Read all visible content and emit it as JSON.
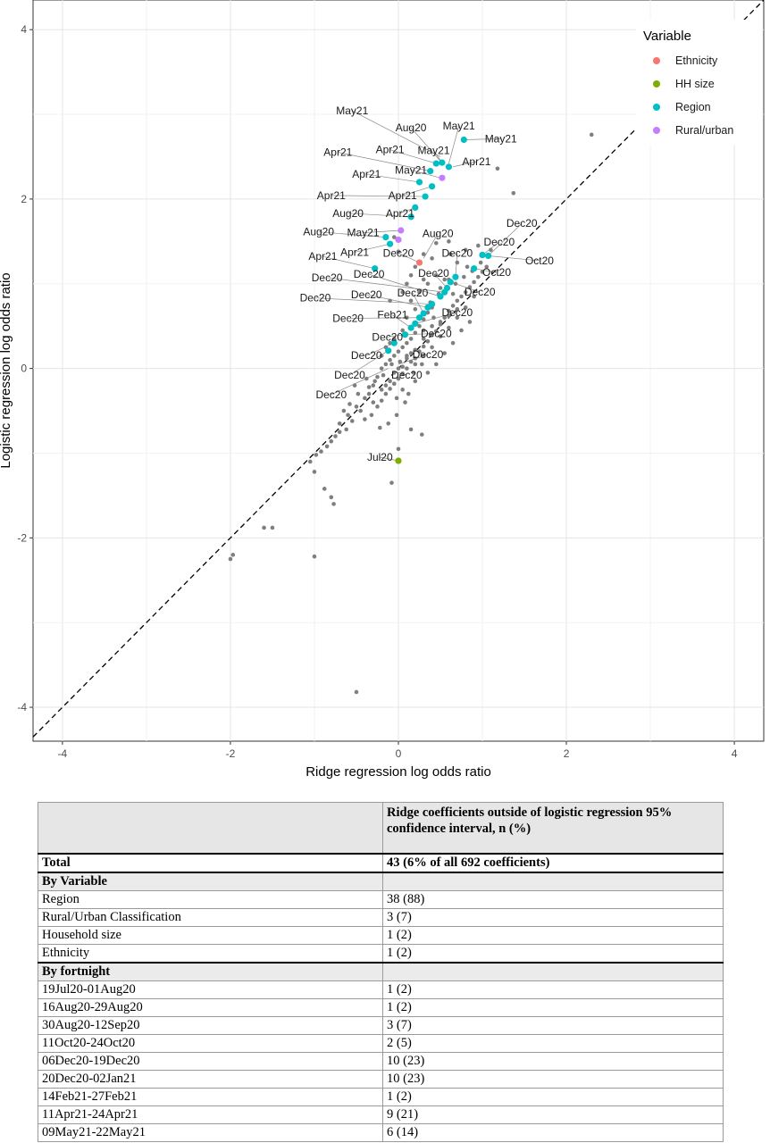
{
  "chart_data": {
    "type": "scatter",
    "xlabel": "Ridge regression log odds ratio",
    "ylabel": "Logistic regression log odds ratio",
    "xlim": [
      -4.35,
      4.35
    ],
    "ylim": [
      -4.4,
      4.35
    ],
    "x_ticks": [
      -4,
      -2,
      0,
      2,
      4
    ],
    "y_ticks": [
      -4,
      -2,
      0,
      2,
      4
    ],
    "reference_line": "y = x (dashed)",
    "grid": true,
    "legend": {
      "title": "Variable",
      "position": "top-right",
      "entries": [
        {
          "name": "Ethnicity",
          "color": "#F8766D"
        },
        {
          "name": "HH size",
          "color": "#7CAE00"
        },
        {
          "name": "Region",
          "color": "#00BFC4"
        },
        {
          "name": "Rural/urban",
          "color": "#C77CFF"
        }
      ]
    },
    "background_color": "#7f7f7f",
    "background_points": [
      [
        -2.0,
        -2.25
      ],
      [
        -1.97,
        -2.2
      ],
      [
        -1.6,
        -1.88
      ],
      [
        -1.5,
        -1.88
      ],
      [
        -1.0,
        -2.22
      ],
      [
        -0.5,
        -3.82
      ],
      [
        2.3,
        2.76
      ],
      [
        1.37,
        2.07
      ],
      [
        1.18,
        2.36
      ],
      [
        0.28,
        -0.78
      ],
      [
        0.15,
        -0.72
      ],
      [
        0.0,
        -0.95
      ],
      [
        -0.08,
        -1.35
      ],
      [
        0.0,
        -1.08
      ],
      [
        -0.8,
        -1.52
      ],
      [
        -0.77,
        -1.6
      ],
      [
        -0.88,
        -1.42
      ],
      [
        -1.0,
        -1.22
      ],
      [
        -1.05,
        -1.1
      ],
      [
        -0.98,
        -1.02
      ],
      [
        -0.92,
        -0.98
      ],
      [
        -0.85,
        -0.92
      ],
      [
        -0.8,
        -0.86
      ],
      [
        -0.7,
        -0.75
      ],
      [
        -0.62,
        -0.72
      ],
      [
        -0.55,
        -0.62
      ],
      [
        -0.4,
        -0.6
      ],
      [
        -0.32,
        -0.55
      ],
      [
        -0.25,
        -0.45
      ],
      [
        -0.2,
        -0.38
      ],
      [
        -0.15,
        -0.3
      ],
      [
        -0.1,
        -0.24
      ],
      [
        -0.05,
        -0.18
      ],
      [
        0.0,
        -0.12
      ],
      [
        0.05,
        -0.06
      ],
      [
        0.1,
        0.0
      ],
      [
        0.15,
        0.08
      ],
      [
        0.2,
        0.12
      ],
      [
        0.25,
        0.2
      ],
      [
        0.3,
        0.26
      ],
      [
        0.35,
        0.32
      ],
      [
        0.4,
        0.4
      ],
      [
        0.45,
        0.44
      ],
      [
        0.5,
        0.52
      ],
      [
        0.55,
        0.6
      ],
      [
        0.6,
        0.68
      ],
      [
        0.65,
        0.74
      ],
      [
        0.7,
        0.8
      ],
      [
        0.75,
        0.85
      ],
      [
        0.8,
        0.9
      ],
      [
        0.85,
        0.96
      ],
      [
        0.9,
        1.02
      ],
      [
        0.95,
        1.08
      ],
      [
        1.0,
        1.14
      ],
      [
        1.05,
        1.2
      ],
      [
        -0.3,
        -0.2
      ],
      [
        -0.25,
        -0.1
      ],
      [
        -0.2,
        0.0
      ],
      [
        -0.15,
        0.05
      ],
      [
        -0.1,
        0.1
      ],
      [
        -0.05,
        0.15
      ],
      [
        0.0,
        0.2
      ],
      [
        0.05,
        0.25
      ],
      [
        0.1,
        0.3
      ],
      [
        0.15,
        0.35
      ],
      [
        0.2,
        0.42
      ],
      [
        0.25,
        0.5
      ],
      [
        0.3,
        0.58
      ],
      [
        0.35,
        0.66
      ],
      [
        0.4,
        0.72
      ],
      [
        0.0,
        0.0
      ],
      [
        0.05,
        0.02
      ],
      [
        -0.05,
        -0.05
      ],
      [
        0.1,
        0.12
      ],
      [
        -0.1,
        -0.15
      ],
      [
        0.15,
        0.18
      ],
      [
        0.2,
        0.22
      ],
      [
        0.3,
        0.35
      ],
      [
        0.4,
        0.5
      ],
      [
        0.5,
        0.55
      ],
      [
        0.6,
        0.62
      ],
      [
        0.7,
        0.7
      ],
      [
        0.2,
        0.05
      ],
      [
        0.3,
        0.15
      ],
      [
        0.4,
        0.25
      ],
      [
        0.5,
        0.38
      ],
      [
        0.6,
        0.48
      ],
      [
        0.7,
        0.6
      ],
      [
        0.8,
        0.72
      ],
      [
        0.9,
        0.85
      ],
      [
        -0.4,
        -0.35
      ],
      [
        -0.35,
        -0.3
      ],
      [
        -0.45,
        -0.5
      ],
      [
        -0.3,
        -0.4
      ],
      [
        -0.2,
        -0.25
      ],
      [
        -0.15,
        -0.2
      ],
      [
        -0.5,
        -0.45
      ],
      [
        -0.6,
        -0.55
      ],
      [
        -0.7,
        -0.65
      ],
      [
        -0.75,
        -0.8
      ],
      [
        0.25,
        0.9
      ],
      [
        0.3,
        1.05
      ],
      [
        0.35,
        1.0
      ],
      [
        0.45,
        1.1
      ],
      [
        0.4,
        1.3
      ],
      [
        0.6,
        1.5
      ],
      [
        0.62,
        1.35
      ],
      [
        0.7,
        1.25
      ],
      [
        0.8,
        1.4
      ],
      [
        0.95,
        1.45
      ],
      [
        0.5,
        0.95
      ],
      [
        0.55,
        1.05
      ],
      [
        0.15,
        0.8
      ],
      [
        0.2,
        0.7
      ],
      [
        0.1,
        0.6
      ],
      [
        0.05,
        0.45
      ],
      [
        -0.05,
        0.35
      ],
      [
        -0.1,
        0.3
      ],
      [
        -0.15,
        0.25
      ],
      [
        -0.2,
        0.15
      ],
      [
        0.35,
        -0.05
      ],
      [
        0.45,
        0.05
      ],
      [
        0.55,
        0.18
      ],
      [
        0.65,
        0.3
      ],
      [
        0.75,
        0.45
      ],
      [
        0.85,
        0.55
      ],
      [
        0.12,
        -0.3
      ],
      [
        0.2,
        -0.15
      ],
      [
        0.08,
        -0.4
      ],
      [
        -0.02,
        -0.55
      ],
      [
        -0.12,
        -0.65
      ],
      [
        -0.22,
        -0.7
      ],
      [
        0.25,
        0.6
      ],
      [
        0.38,
        0.78
      ],
      [
        0.48,
        0.88
      ],
      [
        0.58,
        0.95
      ],
      [
        0.68,
        1.0
      ],
      [
        0.78,
        1.08
      ],
      [
        0.88,
        1.15
      ],
      [
        0.98,
        1.25
      ],
      [
        0.05,
        -0.25
      ],
      [
        -0.02,
        -0.35
      ],
      [
        0.18,
        -0.05
      ],
      [
        0.28,
        0.05
      ],
      [
        0.1,
        0.15
      ],
      [
        0.02,
        0.08
      ],
      [
        -0.08,
        0.05
      ],
      [
        -0.18,
        -0.08
      ],
      [
        -0.28,
        -0.15
      ],
      [
        -0.35,
        -0.22
      ],
      [
        0.2,
        1.2
      ],
      [
        0.3,
        1.35
      ],
      [
        -0.05,
        1.55
      ],
      [
        0.0,
        1.38
      ],
      [
        0.1,
        1.0
      ],
      [
        0.6,
        1.05
      ],
      [
        0.65,
        0.88
      ],
      [
        0.82,
        1.2
      ],
      [
        1.1,
        1.4
      ],
      [
        0.45,
        1.48
      ],
      [
        -0.58,
        -0.42
      ],
      [
        -0.65,
        -0.5
      ],
      [
        -0.48,
        -0.3
      ],
      [
        -0.52,
        -0.2
      ],
      [
        -0.38,
        -0.12
      ],
      [
        0.05,
        0.9
      ],
      [
        0.15,
        1.1
      ],
      [
        -0.1,
        0.8
      ],
      [
        0.3,
        0.45
      ],
      [
        0.42,
        0.6
      ]
    ],
    "highlighted_points": [
      {
        "x": 0.78,
        "y": 2.7,
        "variable": "Region"
      },
      {
        "x": 0.52,
        "y": 2.43,
        "variable": "Region"
      },
      {
        "x": 0.45,
        "y": 2.42,
        "variable": "Region"
      },
      {
        "x": 0.6,
        "y": 2.38,
        "variable": "Region"
      },
      {
        "x": 0.52,
        "y": 2.25,
        "variable": "Rural/urban"
      },
      {
        "x": 0.38,
        "y": 2.33,
        "variable": "Region"
      },
      {
        "x": 0.25,
        "y": 2.2,
        "variable": "Region"
      },
      {
        "x": 0.4,
        "y": 2.15,
        "variable": "Region"
      },
      {
        "x": 0.32,
        "y": 2.03,
        "variable": "Region"
      },
      {
        "x": 0.2,
        "y": 1.9,
        "variable": "Region"
      },
      {
        "x": 0.15,
        "y": 1.79,
        "variable": "Region"
      },
      {
        "x": 0.03,
        "y": 1.63,
        "variable": "Rural/urban"
      },
      {
        "x": -0.15,
        "y": 1.55,
        "variable": "Region"
      },
      {
        "x": 0.0,
        "y": 1.52,
        "variable": "Rural/urban"
      },
      {
        "x": -0.1,
        "y": 1.47,
        "variable": "Region"
      },
      {
        "x": 0.25,
        "y": 1.25,
        "variable": "Ethnicity"
      },
      {
        "x": -0.28,
        "y": 1.18,
        "variable": "Region"
      },
      {
        "x": 1.0,
        "y": 1.34,
        "variable": "Region"
      },
      {
        "x": 1.07,
        "y": 1.33,
        "variable": "Region"
      },
      {
        "x": 0.9,
        "y": 1.18,
        "variable": "Region"
      },
      {
        "x": 0.68,
        "y": 1.08,
        "variable": "Region"
      },
      {
        "x": 0.62,
        "y": 1.02,
        "variable": "Region"
      },
      {
        "x": 0.58,
        "y": 0.95,
        "variable": "Region"
      },
      {
        "x": 0.55,
        "y": 0.9,
        "variable": "Region"
      },
      {
        "x": 0.5,
        "y": 0.85,
        "variable": "Region"
      },
      {
        "x": 0.4,
        "y": 0.76,
        "variable": "Region"
      },
      {
        "x": 0.35,
        "y": 0.72,
        "variable": "Region"
      },
      {
        "x": 0.3,
        "y": 0.65,
        "variable": "Region"
      },
      {
        "x": 0.25,
        "y": 0.6,
        "variable": "Region"
      },
      {
        "x": 0.2,
        "y": 0.53,
        "variable": "Region"
      },
      {
        "x": 0.15,
        "y": 0.48,
        "variable": "Region"
      },
      {
        "x": 0.08,
        "y": 0.4,
        "variable": "Region"
      },
      {
        "x": -0.05,
        "y": 0.3,
        "variable": "Region"
      },
      {
        "x": -0.12,
        "y": 0.21,
        "variable": "Region"
      },
      {
        "x": 0.0,
        "y": -1.09,
        "variable": "HH size"
      }
    ],
    "point_labels": [
      {
        "text": "May21",
        "x": -0.55,
        "y": 3.0,
        "px": 0.5,
        "py": 2.5
      },
      {
        "text": "Aug20",
        "x": 0.15,
        "y": 2.8,
        "px": 0.5,
        "py": 2.45
      },
      {
        "text": "May21",
        "x": 0.72,
        "y": 2.82,
        "px": 0.6,
        "py": 2.42
      },
      {
        "text": "May21",
        "x": 1.22,
        "y": 2.67,
        "px": 0.78,
        "py": 2.7
      },
      {
        "text": "Apr21",
        "x": -0.72,
        "y": 2.51,
        "px": 0.38,
        "py": 2.33
      },
      {
        "text": "Apr21",
        "x": -0.1,
        "y": 2.54,
        "px": 0.45,
        "py": 2.42
      },
      {
        "text": "May21",
        "x": 0.42,
        "y": 2.53,
        "px": 0.52,
        "py": 2.43
      },
      {
        "text": "Apr21",
        "x": 0.93,
        "y": 2.4,
        "px": 0.65,
        "py": 2.38
      },
      {
        "text": "May21",
        "x": 0.15,
        "y": 2.3,
        "px": 0.5,
        "py": 2.25
      },
      {
        "text": "Apr21",
        "x": -0.38,
        "y": 2.25,
        "px": 0.25,
        "py": 2.2
      },
      {
        "text": "Apr21",
        "x": -0.8,
        "y": 2.0,
        "px": 0.32,
        "py": 2.03
      },
      {
        "text": "Apr21",
        "x": 0.05,
        "y": 2.0,
        "px": 0.4,
        "py": 2.15
      },
      {
        "text": "Aug20",
        "x": -0.6,
        "y": 1.79,
        "px": 0.15,
        "py": 1.79
      },
      {
        "text": "Apr21",
        "x": 0.02,
        "y": 1.79,
        "px": 0.2,
        "py": 1.9
      },
      {
        "text": "Aug20",
        "x": -0.95,
        "y": 1.57,
        "px": -0.15,
        "py": 1.55
      },
      {
        "text": "May21",
        "x": -0.42,
        "y": 1.56,
        "px": 0.03,
        "py": 1.63
      },
      {
        "text": "Aug20",
        "x": 0.47,
        "y": 1.55,
        "px": 0.3,
        "py": 1.3
      },
      {
        "text": "Dec20",
        "x": 1.47,
        "y": 1.67,
        "px": 1.07,
        "py": 1.33
      },
      {
        "text": "Apr21",
        "x": -0.9,
        "y": 1.28,
        "px": -0.28,
        "py": 1.18
      },
      {
        "text": "Apr21",
        "x": -0.52,
        "y": 1.33,
        "px": -0.1,
        "py": 1.47
      },
      {
        "text": "Dec20",
        "x": 0.0,
        "y": 1.32,
        "px": 0.25,
        "py": 1.25
      },
      {
        "text": "Dec20",
        "x": 1.2,
        "y": 1.45,
        "px": 1.0,
        "py": 1.34
      },
      {
        "text": "Dec20",
        "x": 0.7,
        "y": 1.32,
        "px": 0.68,
        "py": 1.08
      },
      {
        "text": "Oct20",
        "x": 1.68,
        "y": 1.23,
        "px": 1.07,
        "py": 1.33
      },
      {
        "text": "Dec20",
        "x": -0.85,
        "y": 1.03,
        "px": 0.55,
        "py": 0.9
      },
      {
        "text": "Dec20",
        "x": -0.35,
        "y": 1.07,
        "px": 0.5,
        "py": 0.85
      },
      {
        "text": "Dec20",
        "x": 0.42,
        "y": 1.08,
        "px": 0.58,
        "py": 0.95
      },
      {
        "text": "Oct20",
        "x": 1.17,
        "y": 1.09,
        "px": 0.9,
        "py": 1.18
      },
      {
        "text": "Dec20",
        "x": -0.99,
        "y": 0.79,
        "px": 0.4,
        "py": 0.76
      },
      {
        "text": "Dec20",
        "x": -0.38,
        "y": 0.83,
        "px": 0.35,
        "py": 0.72
      },
      {
        "text": "Dec20",
        "x": 0.17,
        "y": 0.85,
        "px": 0.3,
        "py": 0.65
      },
      {
        "text": "Dec20",
        "x": 0.97,
        "y": 0.86,
        "px": 0.62,
        "py": 1.02
      },
      {
        "text": "Feb21",
        "x": -0.07,
        "y": 0.59,
        "px": 0.15,
        "py": 0.48
      },
      {
        "text": "Dec20",
        "x": -0.6,
        "y": 0.55,
        "px": 0.25,
        "py": 0.6
      },
      {
        "text": "Dec20",
        "x": 0.7,
        "y": 0.62,
        "px": 0.2,
        "py": 0.53
      },
      {
        "text": "Dec20",
        "x": -0.13,
        "y": 0.33,
        "px": 0.08,
        "py": 0.4
      },
      {
        "text": "Dec20",
        "x": 0.45,
        "y": 0.37,
        "px": 0.08,
        "py": 0.4
      },
      {
        "text": "Dec20",
        "x": -0.38,
        "y": 0.11,
        "px": -0.05,
        "py": 0.3
      },
      {
        "text": "Dec20",
        "x": 0.35,
        "y": 0.12,
        "px": 0.0,
        "py": 0.05
      },
      {
        "text": "Dec20",
        "x": -0.58,
        "y": -0.12,
        "px": -0.12,
        "py": 0.21
      },
      {
        "text": "Dec20",
        "x": 0.1,
        "y": -0.12,
        "px": 0.0,
        "py": -0.05
      },
      {
        "text": "Dec20",
        "x": -0.8,
        "y": -0.35,
        "px": -0.12,
        "py": 0.0
      },
      {
        "text": "Jul20",
        "x": -0.22,
        "y": -1.09,
        "px": 0.0,
        "py": -1.09
      }
    ]
  },
  "table": {
    "header_col2": "Ridge coefficients outside of logistic regression 95% confidence interval, n (%)",
    "total_label": "Total",
    "total_value": "43 (6% of all 692 coefficients)",
    "by_variable_label": "By Variable",
    "by_variable": [
      {
        "label": "Region",
        "value": "38 (88)"
      },
      {
        "label": "Rural/Urban Classification",
        "value": "3 (7)"
      },
      {
        "label": "Household size",
        "value": "1 (2)"
      },
      {
        "label": "Ethnicity",
        "value": "1 (2)"
      }
    ],
    "by_fortnight_label": "By fortnight",
    "by_fortnight": [
      {
        "label": "19Jul20-01Aug20",
        "value": "1 (2)"
      },
      {
        "label": "16Aug20-29Aug20",
        "value": "1 (2)"
      },
      {
        "label": "30Aug20-12Sep20",
        "value": "3 (7)"
      },
      {
        "label": "11Oct20-24Oct20",
        "value": "2 (5)"
      },
      {
        "label": "06Dec20-19Dec20",
        "value": "10 (23)"
      },
      {
        "label": "20Dec20-02Jan21",
        "value": "10 (23)"
      },
      {
        "label": "14Feb21-27Feb21",
        "value": "1 (2)"
      },
      {
        "label": "11Apr21-24Apr21",
        "value": "9 (21)"
      },
      {
        "label": "09May21-22May21",
        "value": "6 (14)"
      }
    ]
  }
}
